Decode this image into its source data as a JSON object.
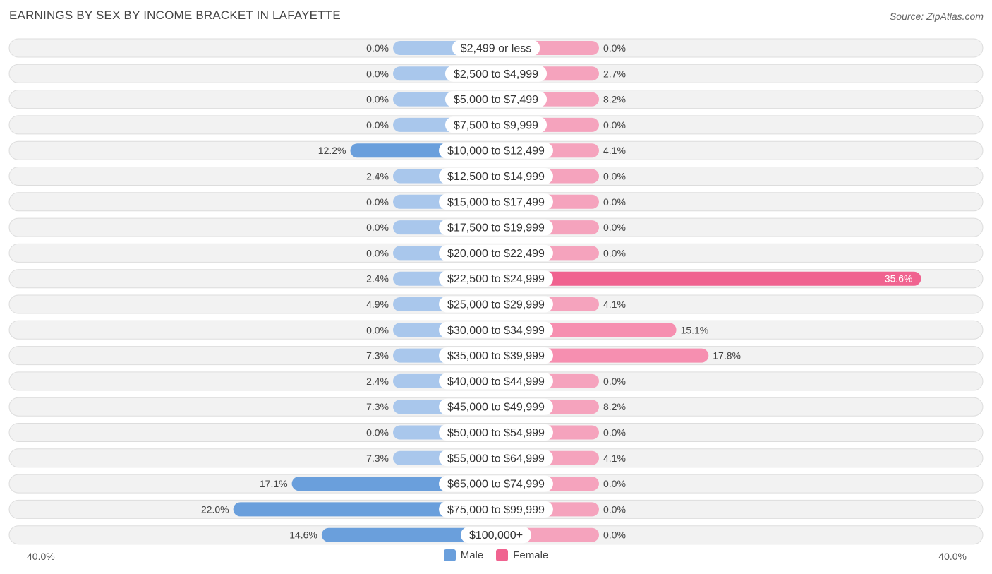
{
  "title": "EARNINGS BY SEX BY INCOME BRACKET IN LAFAYETTE",
  "source": "Source: ZipAtlas.com",
  "colors": {
    "male_strong": "#6a9fdc",
    "male_light": "#a9c7ec",
    "female_strong": "#f06390",
    "female_light": "#f5a3bd",
    "row_bg": "#f2f2f2",
    "row_border": "#dddddd"
  },
  "axis": {
    "left_label": "40.0%",
    "right_label": "40.0%"
  },
  "legend": {
    "male": "Male",
    "female": "Female"
  },
  "chart_data": {
    "type": "bar",
    "orientation": "horizontal-diverging",
    "title": "EARNINGS BY SEX BY INCOME BRACKET IN LAFAYETTE",
    "xlim": [
      -40,
      40
    ],
    "categories": [
      "$2,499 or less",
      "$2,500 to $4,999",
      "$5,000 to $7,499",
      "$7,500 to $9,999",
      "$10,000 to $12,499",
      "$12,500 to $14,999",
      "$15,000 to $17,499",
      "$17,500 to $19,999",
      "$20,000 to $22,499",
      "$22,500 to $24,999",
      "$25,000 to $29,999",
      "$30,000 to $34,999",
      "$35,000 to $39,999",
      "$40,000 to $44,999",
      "$45,000 to $49,999",
      "$50,000 to $54,999",
      "$55,000 to $64,999",
      "$65,000 to $74,999",
      "$75,000 to $99,999",
      "$100,000+"
    ],
    "series": [
      {
        "name": "Male",
        "values": [
          0.0,
          0.0,
          0.0,
          0.0,
          12.2,
          2.4,
          0.0,
          0.0,
          0.0,
          2.4,
          4.9,
          0.0,
          7.3,
          2.4,
          7.3,
          0.0,
          7.3,
          17.1,
          22.0,
          14.6
        ],
        "labels": [
          "0.0%",
          "0.0%",
          "0.0%",
          "0.0%",
          "12.2%",
          "2.4%",
          "0.0%",
          "0.0%",
          "0.0%",
          "2.4%",
          "4.9%",
          "0.0%",
          "7.3%",
          "2.4%",
          "7.3%",
          "0.0%",
          "7.3%",
          "17.1%",
          "22.0%",
          "14.6%"
        ]
      },
      {
        "name": "Female",
        "values": [
          0.0,
          2.7,
          8.2,
          0.0,
          4.1,
          0.0,
          0.0,
          0.0,
          0.0,
          35.6,
          4.1,
          15.1,
          17.8,
          0.0,
          8.2,
          0.0,
          4.1,
          0.0,
          0.0,
          0.0
        ],
        "labels": [
          "0.0%",
          "2.7%",
          "8.2%",
          "0.0%",
          "4.1%",
          "0.0%",
          "0.0%",
          "0.0%",
          "0.0%",
          "35.6%",
          "4.1%",
          "15.1%",
          "17.8%",
          "0.0%",
          "8.2%",
          "0.0%",
          "4.1%",
          "0.0%",
          "0.0%",
          "0.0%"
        ]
      }
    ]
  }
}
